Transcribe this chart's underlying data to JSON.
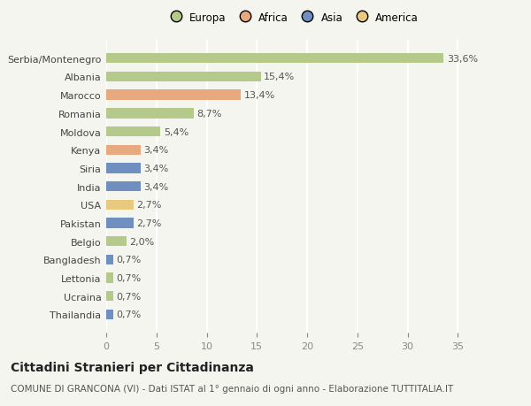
{
  "countries": [
    "Serbia/Montenegro",
    "Albania",
    "Marocco",
    "Romania",
    "Moldova",
    "Kenya",
    "Siria",
    "India",
    "USA",
    "Pakistan",
    "Belgio",
    "Bangladesh",
    "Lettonia",
    "Ucraina",
    "Thailandia"
  ],
  "values": [
    33.6,
    15.4,
    13.4,
    8.7,
    5.4,
    3.4,
    3.4,
    3.4,
    2.7,
    2.7,
    2.0,
    0.7,
    0.7,
    0.7,
    0.7
  ],
  "labels": [
    "33,6%",
    "15,4%",
    "13,4%",
    "8,7%",
    "5,4%",
    "3,4%",
    "3,4%",
    "3,4%",
    "2,7%",
    "2,7%",
    "2,0%",
    "0,7%",
    "0,7%",
    "0,7%",
    "0,7%"
  ],
  "colors": [
    "#b5c98a",
    "#b5c98a",
    "#e8a97e",
    "#b5c98a",
    "#b5c98a",
    "#e8a97e",
    "#6e8fbf",
    "#6e8fbf",
    "#e8c97e",
    "#6e8fbf",
    "#b5c98a",
    "#6e8fbf",
    "#b5c98a",
    "#b5c98a",
    "#6e8fbf"
  ],
  "legend_labels": [
    "Europa",
    "Africa",
    "Asia",
    "America"
  ],
  "legend_colors": [
    "#b5c98a",
    "#e8a97e",
    "#6e8fbf",
    "#e8c97e"
  ],
  "xlim": [
    0,
    37
  ],
  "xticks": [
    0,
    5,
    10,
    15,
    20,
    25,
    30,
    35
  ],
  "title": "Cittadini Stranieri per Cittadinanza",
  "subtitle": "COMUNE DI GRANCONA (VI) - Dati ISTAT al 1° gennaio di ogni anno - Elaborazione TUTTITALIA.IT",
  "bg_color": "#f5f5f0",
  "bar_height": 0.55,
  "label_fontsize": 8,
  "tick_fontsize": 8,
  "title_fontsize": 10,
  "subtitle_fontsize": 7.5
}
